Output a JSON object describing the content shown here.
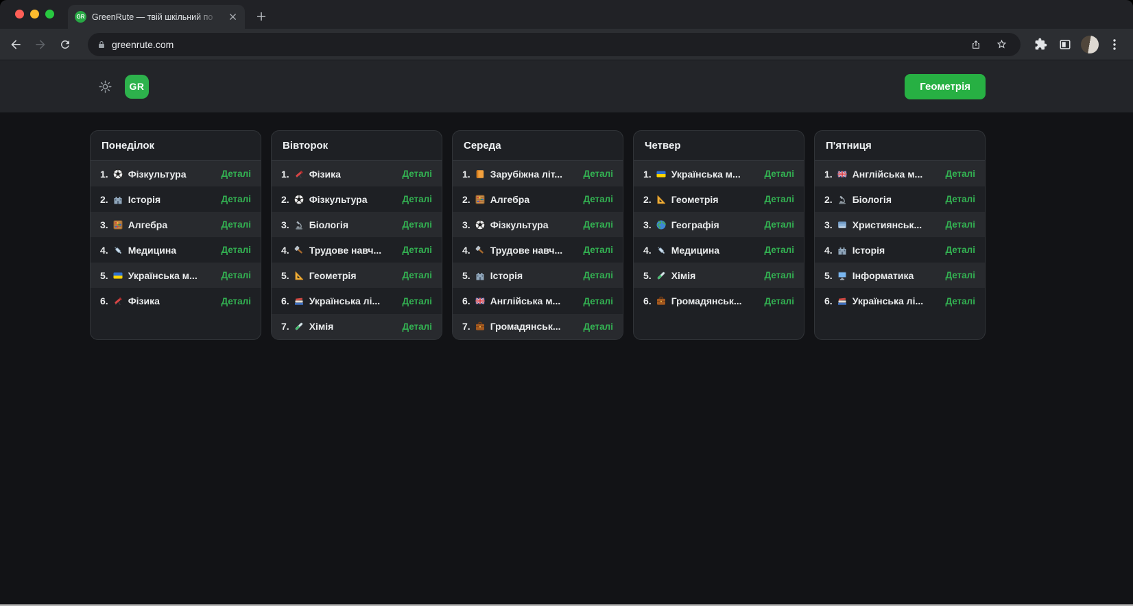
{
  "browser": {
    "tab": {
      "favicon_text": "GR",
      "title": "GreenRute — твій шкільний по"
    },
    "url": "greenrute.com"
  },
  "header": {
    "logo_text": "GR",
    "subject_button": "Геометрія"
  },
  "colors": {
    "accent_green": "#2db24c",
    "button_green": "#27b043",
    "details_green": "#33b252",
    "traffic_red": "#ff5f57",
    "traffic_yellow": "#febc2e",
    "traffic_green": "#28c840"
  },
  "schedule": {
    "details_label": "Деталі",
    "days": [
      {
        "name": "Понеділок",
        "lessons": [
          {
            "num": "1.",
            "icon": "soccer-ball",
            "title": "Фізкультура"
          },
          {
            "num": "2.",
            "icon": "castle",
            "title": "Історія"
          },
          {
            "num": "3.",
            "icon": "abacus",
            "title": "Алгебра"
          },
          {
            "num": "4.",
            "icon": "syringe",
            "title": "Медицина"
          },
          {
            "num": "5.",
            "icon": "flag-ukraine",
            "title": "Українська м..."
          },
          {
            "num": "6.",
            "icon": "telescope",
            "title": "Фізика"
          }
        ]
      },
      {
        "name": "Вівторок",
        "lessons": [
          {
            "num": "1.",
            "icon": "telescope",
            "title": "Фізика"
          },
          {
            "num": "2.",
            "icon": "soccer-ball",
            "title": "Фізкультура"
          },
          {
            "num": "3.",
            "icon": "microscope",
            "title": "Біологія"
          },
          {
            "num": "4.",
            "icon": "hammer",
            "title": "Трудове навч..."
          },
          {
            "num": "5.",
            "icon": "triangle-ruler",
            "title": "Геометрія"
          },
          {
            "num": "6.",
            "icon": "books",
            "title": "Українська лі..."
          },
          {
            "num": "7.",
            "icon": "test-tube",
            "title": "Хімія"
          }
        ]
      },
      {
        "name": "Середа",
        "lessons": [
          {
            "num": "1.",
            "icon": "orange-book",
            "title": "Зарубіжна літ..."
          },
          {
            "num": "2.",
            "icon": "abacus",
            "title": "Алгебра"
          },
          {
            "num": "3.",
            "icon": "soccer-ball",
            "title": "Фізкультура"
          },
          {
            "num": "4.",
            "icon": "hammer",
            "title": "Трудове навч..."
          },
          {
            "num": "5.",
            "icon": "castle",
            "title": "Історія"
          },
          {
            "num": "6.",
            "icon": "flag-uk",
            "title": "Англійська м..."
          },
          {
            "num": "7.",
            "icon": "briefcase",
            "title": "Громадянськ..."
          }
        ]
      },
      {
        "name": "Четвер",
        "lessons": [
          {
            "num": "1.",
            "icon": "flag-ukraine",
            "title": "Українська м..."
          },
          {
            "num": "2.",
            "icon": "triangle-ruler",
            "title": "Геометрія"
          },
          {
            "num": "3.",
            "icon": "globe",
            "title": "Географія"
          },
          {
            "num": "4.",
            "icon": "syringe",
            "title": "Медицина"
          },
          {
            "num": "5.",
            "icon": "test-tube",
            "title": "Хімія"
          },
          {
            "num": "6.",
            "icon": "briefcase",
            "title": "Громадянськ..."
          }
        ]
      },
      {
        "name": "П'ятниця",
        "lessons": [
          {
            "num": "1.",
            "icon": "flag-uk",
            "title": "Англійська м..."
          },
          {
            "num": "2.",
            "icon": "microscope",
            "title": "Біологія"
          },
          {
            "num": "3.",
            "icon": "blue-book",
            "title": "Християнськ..."
          },
          {
            "num": "4.",
            "icon": "castle",
            "title": "Історія"
          },
          {
            "num": "5.",
            "icon": "computer",
            "title": "Інформатика"
          },
          {
            "num": "6.",
            "icon": "books",
            "title": "Українська лі..."
          }
        ]
      }
    ]
  }
}
